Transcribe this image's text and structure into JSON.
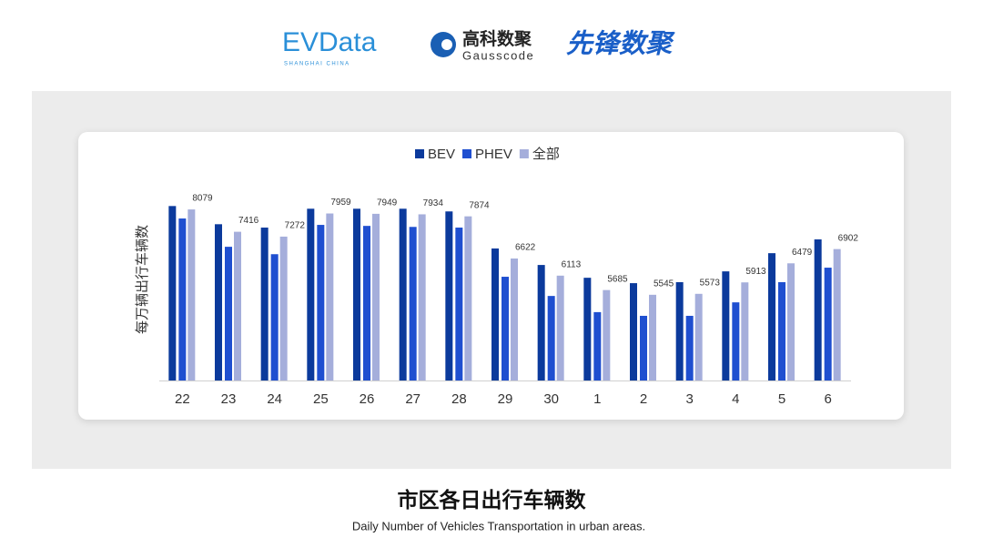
{
  "header": {
    "logo1": "EVData",
    "logo1_sub": "SHANGHAI CHINA",
    "logo2": "高科数聚",
    "logo2_sub": "Gausscode",
    "logo3": "先锋数聚"
  },
  "chart_data": {
    "type": "bar",
    "y_label": "每万辆出行车辆数",
    "categories": [
      "22",
      "23",
      "24",
      "25",
      "26",
      "27",
      "28",
      "29",
      "30",
      "1",
      "2",
      "3",
      "4",
      "5",
      "6"
    ],
    "series": [
      {
        "name": "BEV",
        "color": "#0b3a9c",
        "values": [
          8180,
          7640,
          7540,
          8100,
          8100,
          8100,
          8020,
          6920,
          6430,
          6050,
          5890,
          5920,
          6240,
          6780,
          7190
        ]
      },
      {
        "name": "PHEV",
        "color": "#1f4fd0",
        "values": [
          7810,
          6970,
          6750,
          7620,
          7590,
          7560,
          7540,
          6080,
          5510,
          5030,
          4920,
          4920,
          5320,
          5920,
          6350
        ]
      },
      {
        "name": "全部",
        "color": "#a5aedb",
        "values": [
          8079,
          7416,
          7272,
          7959,
          7949,
          7934,
          7874,
          6622,
          6113,
          5685,
          5545,
          5573,
          5913,
          6479,
          6902
        ]
      }
    ],
    "ylim": [
      3000,
      9000
    ],
    "legend": "top",
    "data_labels_series": 2
  },
  "footer": {
    "title": "市区各日出行车辆数",
    "subtitle": "Daily Number of Vehicles Transportation in urban areas."
  }
}
